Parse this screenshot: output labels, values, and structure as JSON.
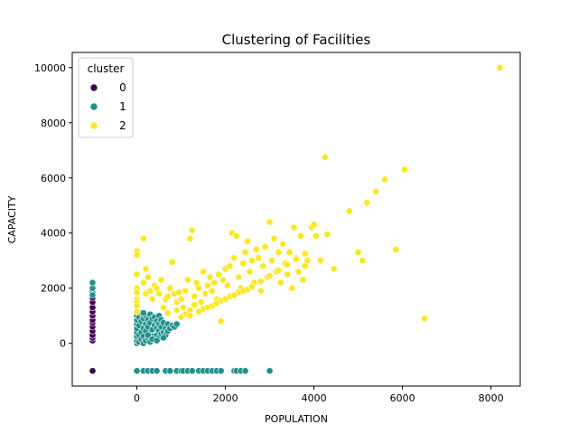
{
  "chart_data": {
    "type": "scatter",
    "title": "Clustering of Facilities",
    "xlabel": "POPULATION",
    "ylabel": "CAPACITY",
    "xlim": [
      -1460,
      8660
    ],
    "ylim": [
      -1550,
      10550
    ],
    "xticks": [
      0,
      2000,
      4000,
      6000,
      8000
    ],
    "yticks": [
      0,
      2000,
      4000,
      6000,
      8000,
      10000
    ],
    "grid": false,
    "legend": {
      "title": "cluster",
      "placement": "top-left",
      "entries": [
        {
          "label": "0",
          "color": "#440154"
        },
        {
          "label": "1",
          "color": "#21918c"
        },
        {
          "label": "2",
          "color": "#fde725"
        }
      ]
    },
    "series": [
      {
        "name": "0",
        "color": "#440154",
        "points": [
          [
            -1000,
            -1000
          ],
          [
            -1000,
            100
          ],
          [
            -1000,
            200
          ],
          [
            -1000,
            300
          ],
          [
            -1000,
            450
          ],
          [
            -1000,
            600
          ],
          [
            -1000,
            750
          ],
          [
            -1000,
            850
          ],
          [
            -1000,
            1000
          ],
          [
            -1000,
            1150
          ],
          [
            -1000,
            1300
          ],
          [
            -1000,
            1500
          ],
          [
            -1000,
            1650
          ],
          [
            -1000,
            1900
          ]
        ]
      },
      {
        "name": "1",
        "color": "#21918c",
        "points": [
          [
            -1000,
            1850
          ],
          [
            -1000,
            2000
          ],
          [
            -1000,
            2200
          ],
          [
            -1000,
            1750
          ],
          [
            0,
            -1000
          ],
          [
            150,
            -1000
          ],
          [
            250,
            -1000
          ],
          [
            350,
            -1000
          ],
          [
            450,
            -1000
          ],
          [
            650,
            -1000
          ],
          [
            750,
            -1000
          ],
          [
            900,
            -1000
          ],
          [
            1000,
            -1000
          ],
          [
            1050,
            -1000
          ],
          [
            1150,
            -1000
          ],
          [
            1250,
            -1000
          ],
          [
            1400,
            -1000
          ],
          [
            1500,
            -1000
          ],
          [
            1600,
            -1000
          ],
          [
            1700,
            -1000
          ],
          [
            1800,
            -1000
          ],
          [
            1900,
            -1000
          ],
          [
            2200,
            -1000
          ],
          [
            2250,
            -1000
          ],
          [
            2350,
            -1000
          ],
          [
            2450,
            -1000
          ],
          [
            3000,
            -1000
          ],
          [
            0,
            0
          ],
          [
            0,
            100
          ],
          [
            0,
            250
          ],
          [
            0,
            400
          ],
          [
            0,
            550
          ],
          [
            0,
            700
          ],
          [
            0,
            850
          ],
          [
            0,
            1000
          ],
          [
            50,
            50
          ],
          [
            50,
            300
          ],
          [
            50,
            650
          ],
          [
            50,
            950
          ],
          [
            100,
            150
          ],
          [
            100,
            400
          ],
          [
            100,
            800
          ],
          [
            100,
            1100
          ],
          [
            150,
            0
          ],
          [
            150,
            250
          ],
          [
            150,
            550
          ],
          [
            150,
            900
          ],
          [
            200,
            100
          ],
          [
            200,
            450
          ],
          [
            200,
            700
          ],
          [
            200,
            1000
          ],
          [
            250,
            200
          ],
          [
            250,
            600
          ],
          [
            250,
            850
          ],
          [
            300,
            50
          ],
          [
            300,
            350
          ],
          [
            300,
            750
          ],
          [
            300,
            1050
          ],
          [
            350,
            250
          ],
          [
            350,
            500
          ],
          [
            350,
            900
          ],
          [
            400,
            150
          ],
          [
            400,
            650
          ],
          [
            400,
            950
          ],
          [
            450,
            300
          ],
          [
            450,
            550
          ],
          [
            450,
            800
          ],
          [
            500,
            200
          ],
          [
            500,
            450
          ],
          [
            500,
            700
          ],
          [
            500,
            1000
          ],
          [
            550,
            350
          ],
          [
            550,
            600
          ],
          [
            550,
            850
          ],
          [
            600,
            400
          ],
          [
            600,
            750
          ],
          [
            650,
            300
          ],
          [
            650,
            550
          ],
          [
            700,
            450
          ],
          [
            700,
            700
          ],
          [
            750,
            550
          ],
          [
            800,
            650
          ],
          [
            850,
            600
          ],
          [
            900,
            700
          ],
          [
            250,
            300
          ],
          [
            350,
            150
          ],
          [
            450,
            100
          ],
          [
            150,
            1100
          ],
          [
            600,
            200
          ]
        ]
      },
      {
        "name": "2",
        "color": "#fde725",
        "points": [
          [
            0,
            3350
          ],
          [
            0,
            3200
          ],
          [
            0,
            2500
          ],
          [
            0,
            2000
          ],
          [
            0,
            1850
          ],
          [
            0,
            1600
          ],
          [
            0,
            1500
          ],
          [
            0,
            1350
          ],
          [
            0,
            1150
          ],
          [
            150,
            3800
          ],
          [
            200,
            2700
          ],
          [
            150,
            2200
          ],
          [
            200,
            1800
          ],
          [
            250,
            2400
          ],
          [
            300,
            1900
          ],
          [
            350,
            1600
          ],
          [
            400,
            2100
          ],
          [
            450,
            2000
          ],
          [
            500,
            1800
          ],
          [
            550,
            2300
          ],
          [
            600,
            1300
          ],
          [
            650,
            1600
          ],
          [
            700,
            1700
          ],
          [
            750,
            2000
          ],
          [
            800,
            2950
          ],
          [
            850,
            1800
          ],
          [
            900,
            1500
          ],
          [
            950,
            1850
          ],
          [
            1000,
            1600
          ],
          [
            1050,
            1300
          ],
          [
            1100,
            1900
          ],
          [
            1150,
            2300
          ],
          [
            1200,
            1200
          ],
          [
            1200,
            3800
          ],
          [
            1250,
            4100
          ],
          [
            1300,
            1700
          ],
          [
            1350,
            2200
          ],
          [
            1400,
            2000
          ],
          [
            1450,
            1500
          ],
          [
            1500,
            2600
          ],
          [
            1550,
            1800
          ],
          [
            1600,
            2100
          ],
          [
            1650,
            2400
          ],
          [
            1700,
            1900
          ],
          [
            1750,
            2200
          ],
          [
            1800,
            1600
          ],
          [
            1850,
            2500
          ],
          [
            1900,
            800
          ],
          [
            1950,
            2300
          ],
          [
            2000,
            2700
          ],
          [
            2050,
            2100
          ],
          [
            2100,
            2800
          ],
          [
            2150,
            4000
          ],
          [
            2200,
            3100
          ],
          [
            2250,
            3900
          ],
          [
            2300,
            2400
          ],
          [
            2350,
            2000
          ],
          [
            2400,
            2900
          ],
          [
            2450,
            3300
          ],
          [
            2500,
            3700
          ],
          [
            2550,
            2600
          ],
          [
            2600,
            3000
          ],
          [
            2650,
            2200
          ],
          [
            2700,
            3400
          ],
          [
            2750,
            3100
          ],
          [
            2800,
            1900
          ],
          [
            2850,
            2800
          ],
          [
            2900,
            3500
          ],
          [
            2950,
            2400
          ],
          [
            3000,
            4400
          ],
          [
            3050,
            3000
          ],
          [
            3100,
            3800
          ],
          [
            3150,
            2600
          ],
          [
            3200,
            3300
          ],
          [
            3250,
            2200
          ],
          [
            3300,
            3600
          ],
          [
            3350,
            2900
          ],
          [
            3400,
            2500
          ],
          [
            3450,
            3300
          ],
          [
            3500,
            2000
          ],
          [
            3550,
            4200
          ],
          [
            3600,
            3100
          ],
          [
            3650,
            2600
          ],
          [
            3700,
            3900
          ],
          [
            3750,
            2300
          ],
          [
            3800,
            2800
          ],
          [
            3850,
            3000
          ],
          [
            3950,
            4200
          ],
          [
            4000,
            4300
          ],
          [
            4050,
            3900
          ],
          [
            4150,
            3000
          ],
          [
            4250,
            6750
          ],
          [
            4300,
            3950
          ],
          [
            4450,
            2700
          ],
          [
            4800,
            4800
          ],
          [
            5000,
            3300
          ],
          [
            5100,
            3000
          ],
          [
            5200,
            5100
          ],
          [
            5400,
            5500
          ],
          [
            5600,
            5950
          ],
          [
            5850,
            3400
          ],
          [
            6050,
            6300
          ],
          [
            6500,
            900
          ],
          [
            8200,
            10000
          ],
          [
            700,
            1100
          ],
          [
            900,
            1200
          ],
          [
            1100,
            1050
          ],
          [
            1300,
            1400
          ],
          [
            1500,
            1250
          ],
          [
            1700,
            1350
          ],
          [
            1900,
            1550
          ],
          [
            2100,
            1700
          ],
          [
            2300,
            1850
          ],
          [
            2500,
            1950
          ],
          [
            1000,
            950
          ],
          [
            1200,
            1000
          ],
          [
            1400,
            1150
          ],
          [
            1600,
            1300
          ],
          [
            1800,
            1450
          ],
          [
            2000,
            1600
          ],
          [
            2200,
            1750
          ],
          [
            2400,
            1900
          ],
          [
            2600,
            2050
          ],
          [
            2800,
            2250
          ],
          [
            3000,
            2450
          ],
          [
            3200,
            2650
          ],
          [
            3400,
            2850
          ],
          [
            3600,
            3050
          ],
          [
            3800,
            3250
          ]
        ]
      }
    ]
  }
}
